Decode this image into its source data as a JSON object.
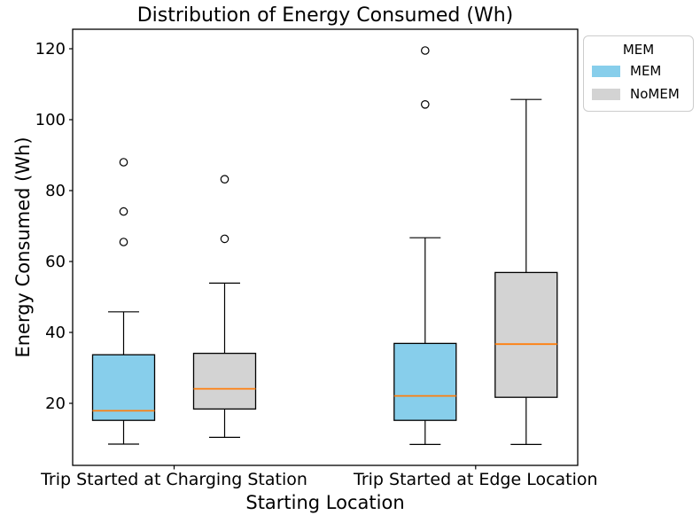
{
  "chart_data": {
    "type": "boxplot",
    "title": "Distribution of Energy Consumed (Wh)",
    "xlabel": "Starting Location",
    "ylabel": "Energy Consumed (Wh)",
    "categories": [
      "Trip Started at Charging Station",
      "Trip Started at Edge Location"
    ],
    "yticks": [
      20,
      40,
      60,
      80,
      100,
      120
    ],
    "ylim": [
      2.5,
      125.5
    ],
    "grid": false,
    "legend_position": "upper right, outside axes",
    "median_color": "#ff7f0e",
    "box_edge_color": "#000000",
    "series": [
      {
        "name": "MEM",
        "color": "#87CEEB",
        "boxes": [
          {
            "category": "Trip Started at Charging Station",
            "whisker_low": 8.5,
            "q1": 15.2,
            "median": 17.9,
            "q3": 33.7,
            "whisker_high": 45.8,
            "outliers": [
              65.5,
              74.1,
              88.0
            ]
          },
          {
            "category": "Trip Started at Edge Location",
            "whisker_low": 8.4,
            "q1": 15.2,
            "median": 22.1,
            "q3": 36.9,
            "whisker_high": 66.7,
            "outliers": [
              104.3,
              119.5
            ]
          }
        ]
      },
      {
        "name": "NoMEM",
        "color": "#D3D3D3",
        "boxes": [
          {
            "category": "Trip Started at Charging Station",
            "whisker_low": 10.4,
            "q1": 18.4,
            "median": 24.1,
            "q3": 34.1,
            "whisker_high": 53.9,
            "outliers": [
              66.4,
              83.2
            ]
          },
          {
            "category": "Trip Started at Edge Location",
            "whisker_low": 8.4,
            "q1": 21.7,
            "median": 36.7,
            "q3": 56.9,
            "whisker_high": 105.7,
            "outliers": []
          }
        ]
      }
    ]
  },
  "legend": {
    "title": "MEM",
    "entries": [
      {
        "label": "MEM",
        "color": "#87CEEB"
      },
      {
        "label": "NoMEM",
        "color": "#D3D3D3"
      }
    ]
  }
}
